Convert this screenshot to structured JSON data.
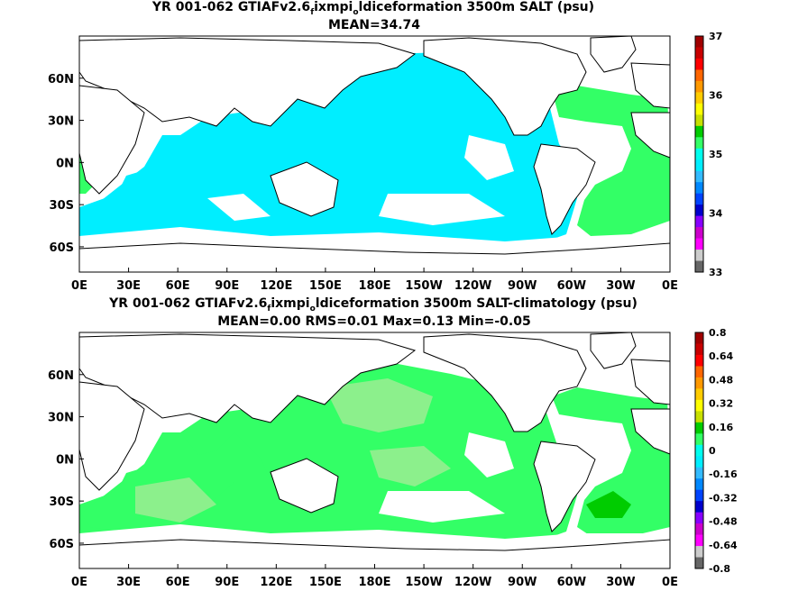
{
  "chart_data": [
    {
      "type": "heatmap",
      "title": "YR 001-062 GTIAFv2.6",
      "title_sub": "f",
      "title_mid": "ixmpi",
      "title_sub2": "o",
      "title_end": "ldiceformation 3500m SALT (psu)",
      "subtitle": "MEAN=34.74",
      "x_ticks": [
        "0E",
        "30E",
        "60E",
        "90E",
        "120E",
        "150E",
        "180E",
        "150W",
        "120W",
        "90W",
        "60W",
        "30W",
        "0E"
      ],
      "x_values": [
        0,
        30,
        60,
        90,
        120,
        150,
        180,
        210,
        240,
        270,
        300,
        330,
        360
      ],
      "y_ticks": [
        "60N",
        "30N",
        "0N",
        "30S",
        "60S"
      ],
      "y_values": [
        60,
        30,
        0,
        -30,
        -60
      ],
      "xlim": [
        0,
        360
      ],
      "ylim": [
        -78,
        90
      ],
      "colorbar": {
        "labels": [
          "37",
          "36",
          "35",
          "34",
          "33"
        ],
        "label_values": [
          37,
          36,
          35,
          34,
          33
        ],
        "range": [
          33,
          37
        ],
        "colors": [
          "#a00000",
          "#c80000",
          "#ff0000",
          "#ff6600",
          "#ff9900",
          "#ffcc00",
          "#ffff00",
          "#c8e000",
          "#00cc00",
          "#33ff66",
          "#00ffee",
          "#00eeff",
          "#33bbff",
          "#0088ff",
          "#0044ff",
          "#0000cc",
          "#8800ff",
          "#cc00cc",
          "#ff00ff",
          "#cccccc",
          "#666666"
        ]
      }
    },
    {
      "type": "heatmap",
      "title": "YR 001-062 GTIAFv2.6",
      "title_sub": "f",
      "title_mid": "ixmpi",
      "title_sub2": "o",
      "title_end": "ldiceformation 3500m SALT-climatology (psu)",
      "subtitle": "MEAN=0.00   RMS=0.01   Max=0.13   Min=-0.05",
      "x_ticks": [
        "0E",
        "30E",
        "60E",
        "90E",
        "120E",
        "150E",
        "180E",
        "150W",
        "120W",
        "90W",
        "60W",
        "30W",
        "0E"
      ],
      "x_values": [
        0,
        30,
        60,
        90,
        120,
        150,
        180,
        210,
        240,
        270,
        300,
        330,
        360
      ],
      "y_ticks": [
        "60N",
        "30N",
        "0N",
        "30S",
        "60S"
      ],
      "y_values": [
        60,
        30,
        0,
        -30,
        -60
      ],
      "xlim": [
        0,
        360
      ],
      "ylim": [
        -78,
        90
      ],
      "colorbar": {
        "labels": [
          "0.8",
          "0.64",
          "0.48",
          "0.32",
          "0.16",
          "0",
          "-0.16",
          "-0.32",
          "-0.48",
          "-0.64",
          "-0.8"
        ],
        "label_values": [
          0.8,
          0.64,
          0.48,
          0.32,
          0.16,
          0,
          -0.16,
          -0.32,
          -0.48,
          -0.64,
          -0.8
        ],
        "range": [
          -0.8,
          0.8
        ],
        "colors": [
          "#a00000",
          "#c80000",
          "#ff0000",
          "#ff6600",
          "#ff9900",
          "#ffcc00",
          "#ffff00",
          "#c8e000",
          "#00cc00",
          "#33ff66",
          "#00ffee",
          "#00eeff",
          "#33bbff",
          "#0088ff",
          "#0044ff",
          "#0000cc",
          "#8800ff",
          "#cc00cc",
          "#ff00ff",
          "#cccccc",
          "#666666"
        ]
      }
    }
  ],
  "colors": {
    "ocean_main": "#00eeff",
    "ocean_green": "#33ff66",
    "ocean_light_green": "#8cf08c",
    "ocean_dark_green": "#00cc00",
    "land": "#ffffff"
  }
}
